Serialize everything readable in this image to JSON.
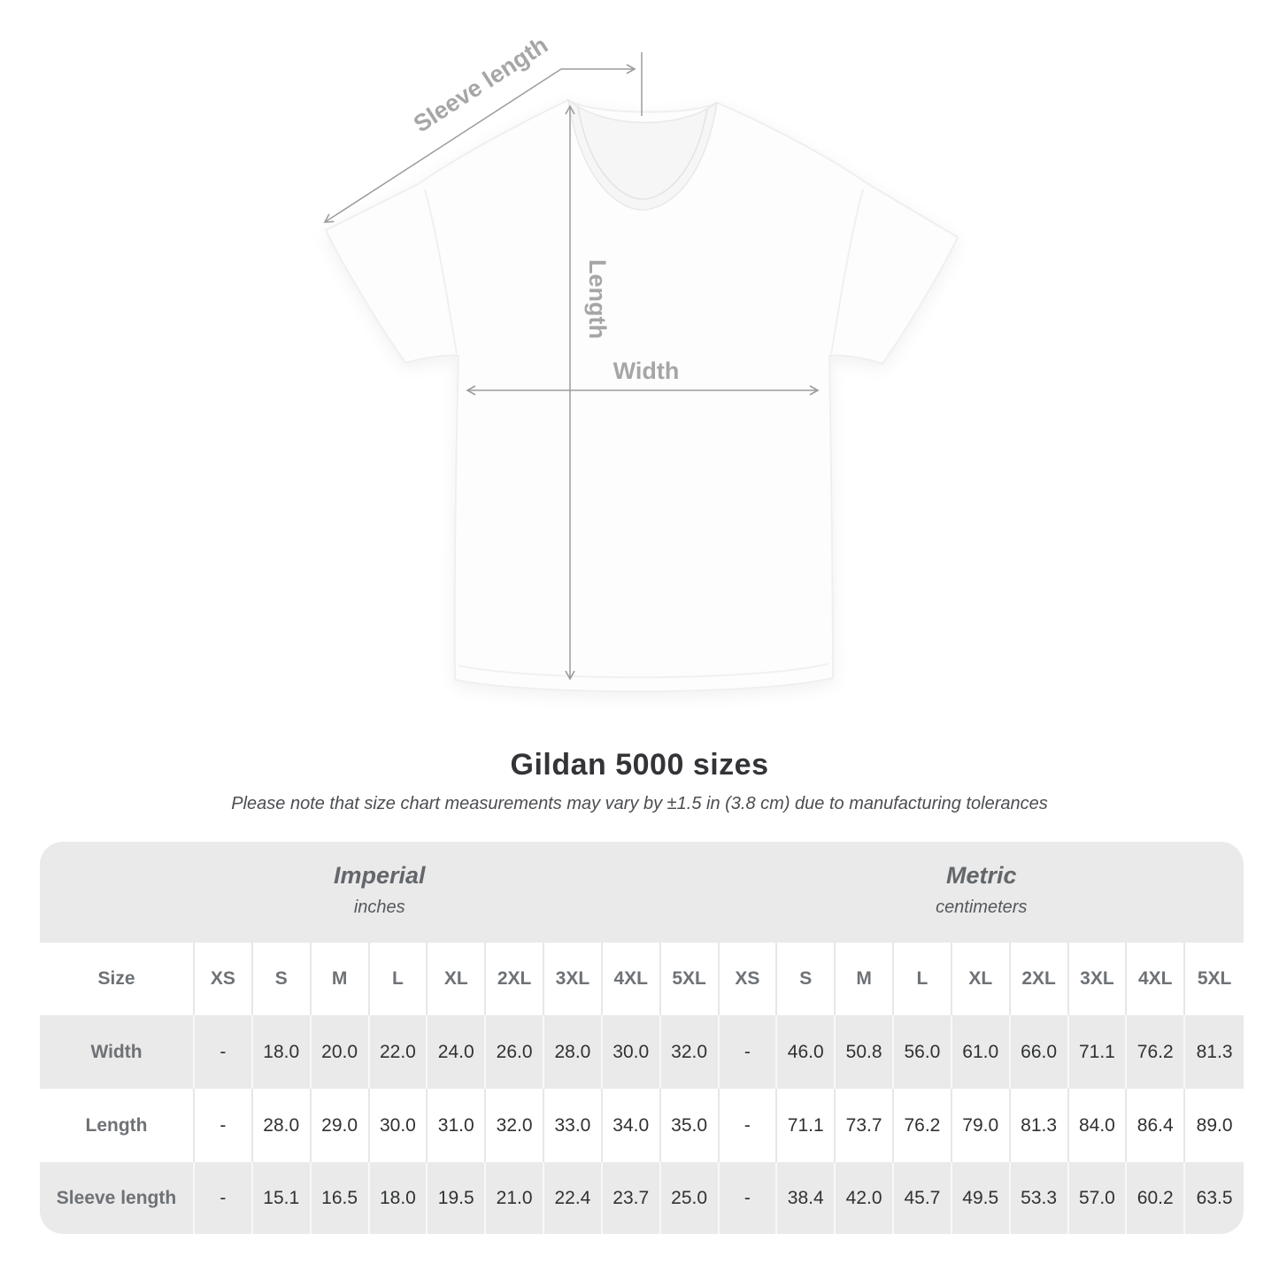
{
  "title": "Gildan 5000 sizes",
  "subtitle": "Please note that size chart measurements may vary by ±1.5 in (3.8 cm) due to manufacturing tolerances",
  "diagram": {
    "sleeve_length_label": "Sleeve length",
    "length_label": "Length",
    "width_label": "Width"
  },
  "colors": {
    "row_gray": "#eaeaea",
    "header_text": "#6e7276",
    "value_text": "#2f3133",
    "annotation_line": "#9c9c9c",
    "annotation_label": "#a6a6a6"
  },
  "table": {
    "corner_label": "Size",
    "sections": [
      {
        "label": "Imperial",
        "sublabel": "inches"
      },
      {
        "label": "Metric",
        "sublabel": "centimeters"
      }
    ],
    "size_headers": [
      "XS",
      "S",
      "M",
      "L",
      "XL",
      "2XL",
      "3XL",
      "4XL",
      "5XL"
    ],
    "rows": [
      {
        "label": "Width",
        "imperial": [
          "-",
          "18.0",
          "20.0",
          "22.0",
          "24.0",
          "26.0",
          "28.0",
          "30.0",
          "32.0"
        ],
        "metric": [
          "-",
          "46.0",
          "50.8",
          "56.0",
          "61.0",
          "66.0",
          "71.1",
          "76.2",
          "81.3"
        ]
      },
      {
        "label": "Length",
        "imperial": [
          "-",
          "28.0",
          "29.0",
          "30.0",
          "31.0",
          "32.0",
          "33.0",
          "34.0",
          "35.0"
        ],
        "metric": [
          "-",
          "71.1",
          "73.7",
          "76.2",
          "79.0",
          "81.3",
          "84.0",
          "86.4",
          "89.0"
        ]
      },
      {
        "label": "Sleeve length",
        "imperial": [
          "-",
          "15.1",
          "16.5",
          "18.0",
          "19.5",
          "21.0",
          "22.4",
          "23.7",
          "25.0"
        ],
        "metric": [
          "-",
          "38.4",
          "42.0",
          "45.7",
          "49.5",
          "53.3",
          "57.0",
          "60.2",
          "63.5"
        ]
      }
    ]
  },
  "chart_data": {
    "type": "table",
    "title": "Gildan 5000 sizes",
    "note": "Size chart measurements may vary by ±1.5 in (3.8 cm) due to manufacturing tolerances",
    "units": {
      "imperial": "inches",
      "metric": "centimeters"
    },
    "sizes": [
      "XS",
      "S",
      "M",
      "L",
      "XL",
      "2XL",
      "3XL",
      "4XL",
      "5XL"
    ],
    "measurements": [
      {
        "name": "Width",
        "imperial_in": [
          null,
          18.0,
          20.0,
          22.0,
          24.0,
          26.0,
          28.0,
          30.0,
          32.0
        ],
        "metric_cm": [
          null,
          46.0,
          50.8,
          56.0,
          61.0,
          66.0,
          71.1,
          76.2,
          81.3
        ]
      },
      {
        "name": "Length",
        "imperial_in": [
          null,
          28.0,
          29.0,
          30.0,
          31.0,
          32.0,
          33.0,
          34.0,
          35.0
        ],
        "metric_cm": [
          null,
          71.1,
          73.7,
          76.2,
          79.0,
          81.3,
          84.0,
          86.4,
          89.0
        ]
      },
      {
        "name": "Sleeve length",
        "imperial_in": [
          null,
          15.1,
          16.5,
          18.0,
          19.5,
          21.0,
          22.4,
          23.7,
          25.0
        ],
        "metric_cm": [
          null,
          38.4,
          42.0,
          45.7,
          49.5,
          53.3,
          57.0,
          60.2,
          63.5
        ]
      }
    ]
  }
}
